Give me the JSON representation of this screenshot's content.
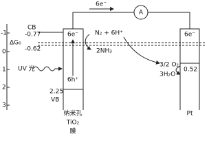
{
  "axis": {
    "ticks": [
      "-1",
      "0",
      "1",
      "2",
      "3"
    ]
  },
  "circuit": {
    "electron_label": "6e⁻",
    "meter": "A"
  },
  "tio2": {
    "cb_label": "CB",
    "delta_g": "ΔG₀",
    "cb_potential": "-0.77",
    "level_potential": "-0.62",
    "electrons": "6e⁻",
    "holes": "6h⁺",
    "band_gap": "2.25",
    "vb_label": "VB",
    "caption": [
      "纳米孔",
      "TiO₂",
      "膜"
    ]
  },
  "light": "UV 光",
  "reduction": {
    "reactants": "N₂ + 6H⁺",
    "product": "2NH₃"
  },
  "oxidation": {
    "reactant": "3/2 O₂",
    "product": "3H₂O"
  },
  "pt": {
    "electrons": "6e⁻",
    "potential": "0.52",
    "caption": "Pt"
  }
}
